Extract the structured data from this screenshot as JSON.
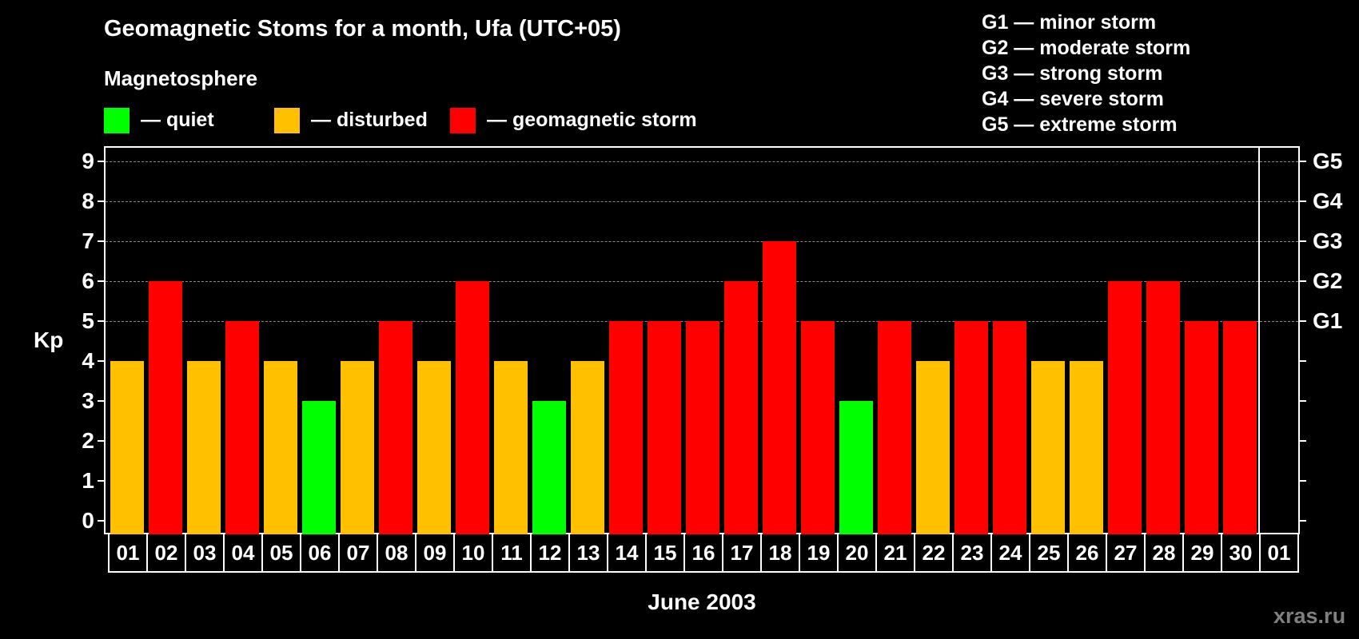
{
  "header": {
    "title": "Geomagnetic Stoms for a month, Ufa (UTC+05)",
    "subtitle": "Magnetosphere"
  },
  "legend": {
    "items": [
      {
        "label": "— quiet",
        "color": "#00ff00"
      },
      {
        "label": "— disturbed",
        "color": "#ffc000"
      },
      {
        "label": "— geomagnetic storm",
        "color": "#ff0000"
      }
    ]
  },
  "g_legend": [
    "G1 — minor storm",
    "G2 — moderate storm",
    "G3 — strong storm",
    "G4 — severe storm",
    "G5 — extreme storm"
  ],
  "axes": {
    "ylabel": "Kp",
    "yticks": [
      "0",
      "1",
      "2",
      "3",
      "4",
      "5",
      "6",
      "7",
      "8",
      "9"
    ],
    "right_ticks": {
      "5": "G1",
      "6": "G2",
      "7": "G3",
      "8": "G4",
      "9": "G5"
    },
    "xlabel": "June 2003"
  },
  "watermark": "xras.ru",
  "colors": {
    "quiet": "#00ff00",
    "disturbed": "#ffc000",
    "storm": "#ff0000",
    "background": "#000000",
    "grid": "#8a8a8a"
  },
  "chart_data": {
    "type": "bar",
    "title": "Geomagnetic Stoms for a month, Ufa (UTC+05)",
    "xlabel": "June 2003",
    "ylabel": "Kp",
    "ylim": [
      0,
      9
    ],
    "grid": true,
    "legend_position": "top",
    "categories": [
      "01",
      "02",
      "03",
      "04",
      "05",
      "06",
      "07",
      "08",
      "09",
      "10",
      "11",
      "12",
      "13",
      "14",
      "15",
      "16",
      "17",
      "18",
      "19",
      "20",
      "21",
      "22",
      "23",
      "24",
      "25",
      "26",
      "27",
      "28",
      "29",
      "30",
      "01"
    ],
    "values": [
      4,
      6,
      4,
      5,
      4,
      3,
      4,
      5,
      4,
      6,
      4,
      3,
      4,
      5,
      5,
      5,
      6,
      7,
      5,
      3,
      5,
      4,
      5,
      5,
      4,
      4,
      6,
      6,
      5,
      5,
      null
    ],
    "status": [
      "disturbed",
      "storm",
      "disturbed",
      "storm",
      "disturbed",
      "quiet",
      "disturbed",
      "storm",
      "disturbed",
      "storm",
      "disturbed",
      "quiet",
      "disturbed",
      "storm",
      "storm",
      "storm",
      "storm",
      "storm",
      "storm",
      "quiet",
      "storm",
      "disturbed",
      "storm",
      "storm",
      "disturbed",
      "disturbed",
      "storm",
      "storm",
      "storm",
      "storm",
      null
    ],
    "secondary_axis": {
      "G1": 5,
      "G2": 6,
      "G3": 7,
      "G4": 8,
      "G5": 9
    }
  }
}
